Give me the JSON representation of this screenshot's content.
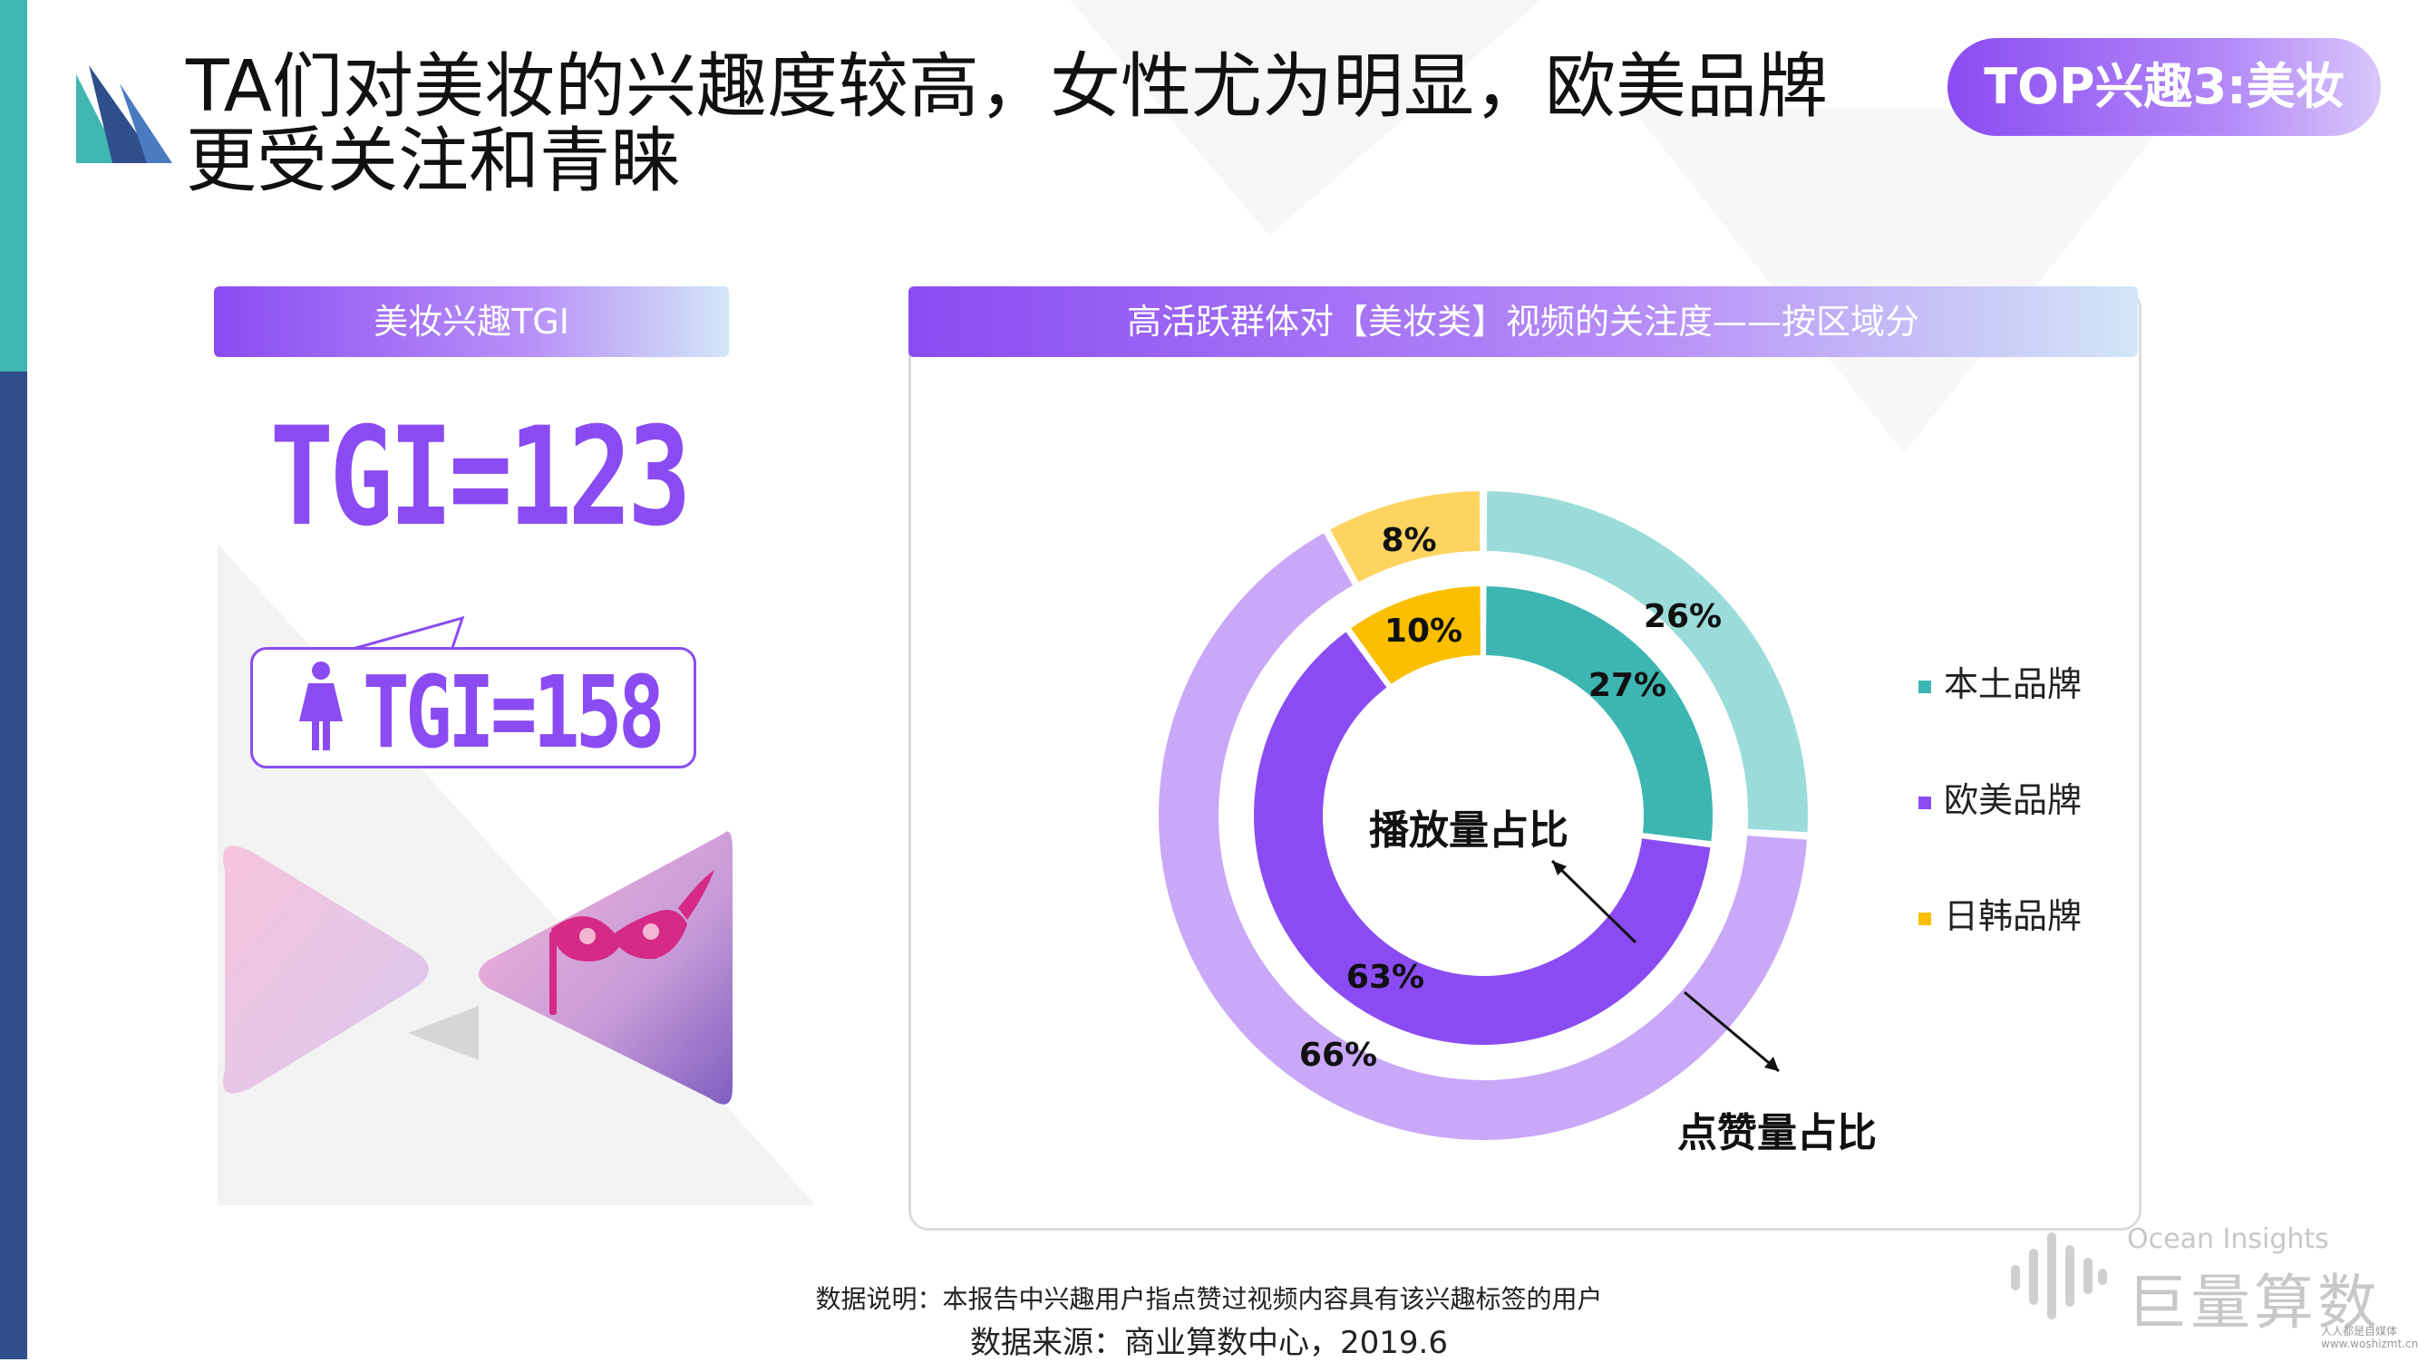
{
  "header": {
    "title_line1": "TA们对美妆的兴趣度较高，女性尤为明显，欧美品牌",
    "title_line2": "更受关注和青睐",
    "badge": "TOP兴趣3:美妆"
  },
  "left_panel": {
    "header": "美妆兴趣TGI",
    "tgi_overall": "TGI=123",
    "tgi_female": "TGI=158",
    "female_icon": "female-icon",
    "mask_icon": "carnival-mask-icon"
  },
  "chart_data": {
    "type": "pie",
    "title": "高活跃群体对【美妆类】视频的关注度——按区域分",
    "categories": [
      "本土品牌",
      "欧美品牌",
      "日韩品牌"
    ],
    "colors": {
      "inner": [
        "#3db6b2",
        "#8a4cf2",
        "#fbbf00"
      ],
      "outer": [
        "#9bdcda",
        "#c9a8f8",
        "#fdd460"
      ]
    },
    "series": [
      {
        "name": "播放量占比",
        "ring": "inner",
        "values": [
          27,
          63,
          10
        ],
        "labels": [
          "27%",
          "63%",
          "10%"
        ]
      },
      {
        "name": "点赞量占比",
        "ring": "outer",
        "values": [
          26,
          66,
          8
        ],
        "labels": [
          "26%",
          "66%",
          "8%"
        ]
      }
    ],
    "legend_position": "right"
  },
  "footer": {
    "note": "数据说明：本报告中兴趣用户指点赞过视频内容具有该兴趣标签的用户",
    "source": "数据来源：商业算数中心，2019.6"
  },
  "brand": {
    "en": "Ocean Insights",
    "cn": "巨量算数",
    "logo_icon": "sound-bars-logo-icon"
  },
  "watermark": {
    "line1": "人人都是自媒体",
    "line2": "www.woshizmt.cn"
  }
}
